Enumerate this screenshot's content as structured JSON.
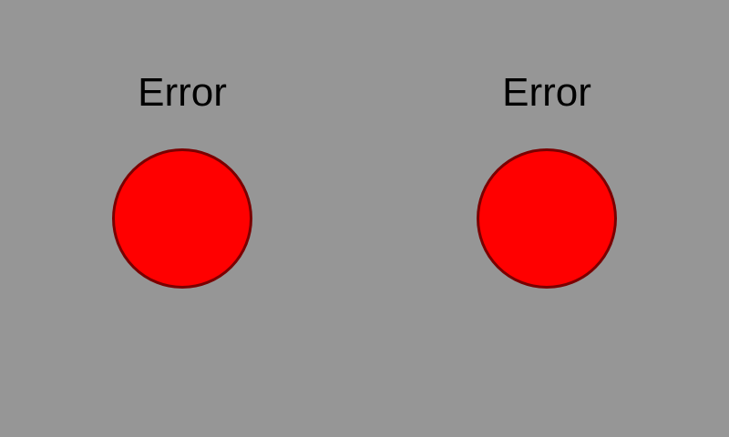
{
  "indicators": [
    {
      "label": "Error",
      "status_color": "#ff0000"
    },
    {
      "label": "Error",
      "status_color": "#ff0000"
    }
  ],
  "colors": {
    "background": "#969696",
    "lamp_border": "#7a0000",
    "text": "#000000"
  }
}
